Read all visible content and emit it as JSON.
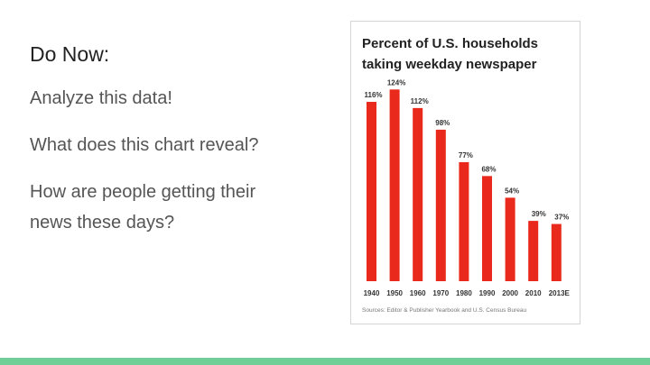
{
  "slide": {
    "title": "Do Now:",
    "lines": [
      "Analyze this data!",
      "What does this chart reveal?",
      "How are people getting their",
      "news  these days?"
    ]
  },
  "colors": {
    "bar": "#e8291b",
    "accent_bar": "#6fcf97",
    "text": "#555555"
  },
  "chart_data": {
    "type": "bar",
    "title": "Percent of U.S. households taking weekday newspaper",
    "title_lines": [
      "Percent of U.S. households",
      "taking weekday newspaper"
    ],
    "categories": [
      "1940",
      "1950",
      "1960",
      "1970",
      "1980",
      "1990",
      "2000",
      "2010",
      "2013E"
    ],
    "values": [
      116,
      124,
      112,
      98,
      77,
      68,
      54,
      39,
      37
    ],
    "value_labels": [
      "116%",
      "124%",
      "112%",
      "98%",
      "77%",
      "68%",
      "54%",
      "39%",
      "37%"
    ],
    "ylim": [
      0,
      130
    ],
    "grid": false,
    "source": "Sources: Editor & Publisher Yearbook and U.S. Census Bureau"
  }
}
